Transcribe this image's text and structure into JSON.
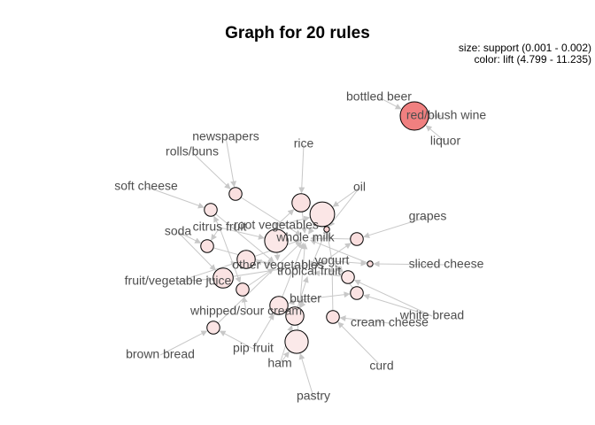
{
  "title": "Graph for 20 rules",
  "legend": {
    "size": "size: support (0.001 - 0.002)",
    "color": "color: lift (4.799 - 11.235)"
  },
  "colors": {
    "edge": "#c8c8c8",
    "node_fill_low": "#fbe9e9",
    "node_fill_high": "#f08080",
    "node_stroke": "#000000",
    "label": "#4d4d4d"
  },
  "items": [
    {
      "id": "bottled_beer",
      "label": "bottled beer"
    },
    {
      "id": "red_blush_wine",
      "label": "red/blush wine"
    },
    {
      "id": "liquor",
      "label": "liquor"
    },
    {
      "id": "newspapers",
      "label": "newspapers"
    },
    {
      "id": "rolls_buns",
      "label": "rolls/buns"
    },
    {
      "id": "rice",
      "label": "rice"
    },
    {
      "id": "oil",
      "label": "oil"
    },
    {
      "id": "soft_cheese",
      "label": "soft cheese"
    },
    {
      "id": "grapes",
      "label": "grapes"
    },
    {
      "id": "root_vegetables",
      "label": "root vegetables"
    },
    {
      "id": "citrus_fruit",
      "label": "citrus fruit"
    },
    {
      "id": "soda",
      "label": "soda"
    },
    {
      "id": "whole_milk",
      "label": "whole milk"
    },
    {
      "id": "yogurt",
      "label": "yogurt"
    },
    {
      "id": "other_vegetables",
      "label": "other vegetables"
    },
    {
      "id": "sliced_cheese",
      "label": "sliced cheese"
    },
    {
      "id": "tropical_fruit",
      "label": "tropical fruit"
    },
    {
      "id": "fruit_vegetable_juice",
      "label": "fruit/vegetable juice"
    },
    {
      "id": "butter",
      "label": "butter"
    },
    {
      "id": "whipped_sour_cream",
      "label": "whipped/sour cream"
    },
    {
      "id": "white_bread",
      "label": "white bread"
    },
    {
      "id": "cream_cheese",
      "label": "cream cheese"
    },
    {
      "id": "brown_bread",
      "label": "brown bread"
    },
    {
      "id": "pip_fruit",
      "label": "pip fruit"
    },
    {
      "id": "curd",
      "label": "curd"
    },
    {
      "id": "ham",
      "label": "ham"
    },
    {
      "id": "pastry",
      "label": "pastry"
    }
  ],
  "rules": [
    {
      "id": "r1",
      "support": 0.002,
      "lift": 11.235
    },
    {
      "id": "r2",
      "support": 0.0011,
      "lift": 5.4
    },
    {
      "id": "r3",
      "support": 0.0011,
      "lift": 5.1
    },
    {
      "id": "r4",
      "support": 0.0013,
      "lift": 5.3
    },
    {
      "id": "r5",
      "support": 0.0017,
      "lift": 5.0
    },
    {
      "id": "r6",
      "support": 0.001,
      "lift": 6.3
    },
    {
      "id": "r7",
      "support": 0.0011,
      "lift": 5.2
    },
    {
      "id": "r8",
      "support": 0.0016,
      "lift": 4.9
    },
    {
      "id": "r9",
      "support": 0.0011,
      "lift": 5.5
    },
    {
      "id": "r10",
      "support": 0.001,
      "lift": 5.6
    },
    {
      "id": "r11",
      "support": 0.0011,
      "lift": 5.0
    },
    {
      "id": "r12",
      "support": 0.0013,
      "lift": 5.1
    },
    {
      "id": "r13",
      "support": 0.0011,
      "lift": 5.2
    },
    {
      "id": "r14",
      "support": 0.0011,
      "lift": 5.4
    },
    {
      "id": "r15",
      "support": 0.0011,
      "lift": 5.3
    },
    {
      "id": "r16",
      "support": 0.0013,
      "lift": 5.0
    },
    {
      "id": "r17",
      "support": 0.0016,
      "lift": 4.8
    },
    {
      "id": "r18",
      "support": 0.0011,
      "lift": 5.1
    },
    {
      "id": "r19",
      "support": 0.0014,
      "lift": 5.2
    },
    {
      "id": "r20",
      "support": 0.0013,
      "lift": 5.0
    }
  ]
}
